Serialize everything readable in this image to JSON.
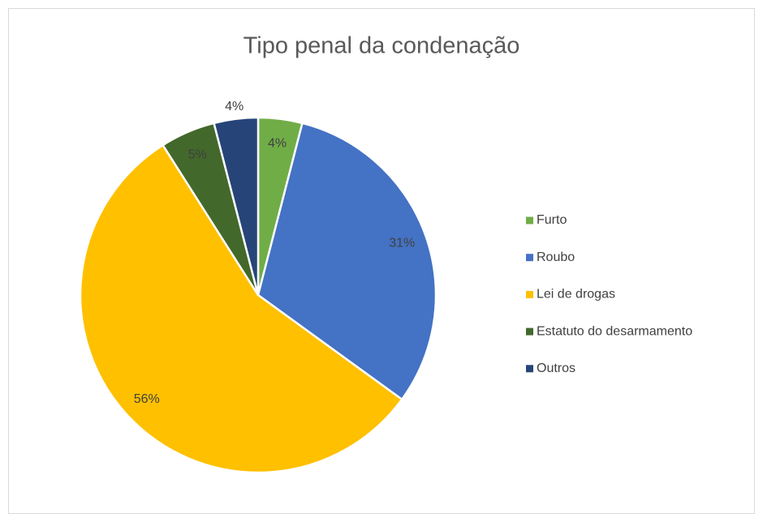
{
  "chart_data": {
    "type": "pie",
    "title": "Tipo penal da condenação",
    "categories": [
      "Furto",
      "Roubo",
      "Lei de drogas",
      "Estatuto do desarmamento",
      "Outros"
    ],
    "values": [
      4,
      31,
      56,
      5,
      4
    ],
    "value_labels": [
      "4%",
      "31%",
      "56%",
      "5%",
      "4%"
    ],
    "colors": [
      "#70ad47",
      "#4472c4",
      "#ffc000",
      "#43682b",
      "#264478"
    ],
    "legend": "right"
  }
}
